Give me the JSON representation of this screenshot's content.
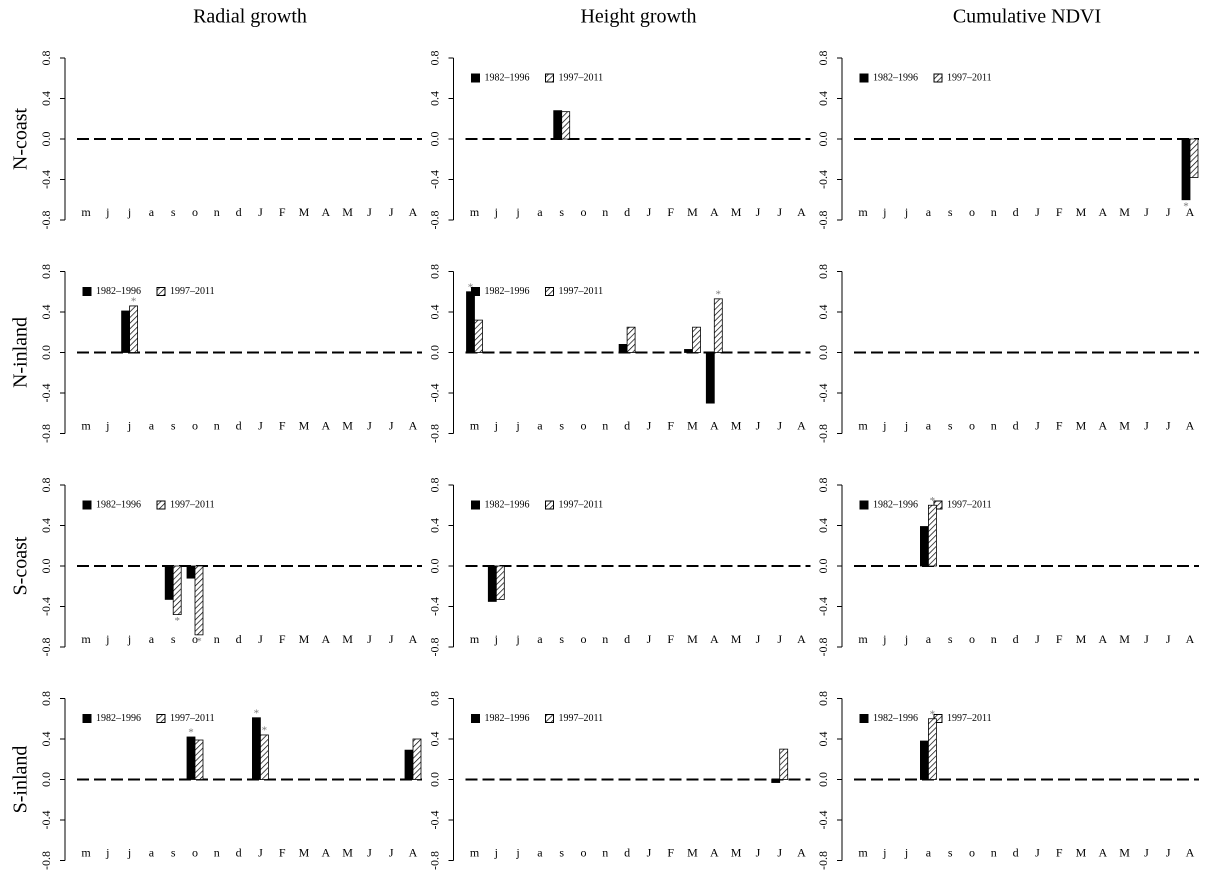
{
  "chart_data": [
    {
      "type": "bar",
      "title": "Radial growth",
      "ylabel": "N-coast",
      "categories": [
        "m",
        "j",
        "j",
        "a",
        "s",
        "o",
        "n",
        "d",
        "J",
        "F",
        "M",
        "A",
        "M",
        "J",
        "J",
        "A"
      ],
      "ylim": [
        -0.8,
        0.8
      ],
      "yticks": [
        -0.8,
        -0.4,
        {
          "value": 0,
          "label": "0.0"
        },
        0.4,
        0.8
      ]
    },
    {
      "type": "bar",
      "title": "Height growth",
      "categories": [
        "m",
        "j",
        "j",
        "a",
        "s",
        "o",
        "n",
        "d",
        "J",
        "F",
        "M",
        "A",
        "M",
        "J",
        "J",
        "A"
      ],
      "ylim": [
        -0.8,
        0.8
      ],
      "yticks": [
        -0.8,
        -0.4,
        {
          "value": 0,
          "label": "0.0"
        },
        0.4,
        0.8
      ],
      "legend": "top-left",
      "series": [
        {
          "name": "1982–1996",
          "color": "#000000",
          "hatch": false,
          "values": [
            0,
            0,
            0,
            0,
            0.28,
            0,
            0,
            0,
            0,
            0,
            0,
            0,
            0,
            0,
            0,
            0
          ]
        },
        {
          "name": "1997–2011",
          "color": "#000000",
          "hatch": true,
          "values": [
            0,
            0,
            0,
            0,
            0.27,
            0,
            0,
            0,
            0,
            0,
            0,
            0,
            0,
            0,
            0,
            0
          ]
        }
      ]
    },
    {
      "type": "bar",
      "title": "Cumulative NDVI",
      "categories": [
        "m",
        "j",
        "j",
        "a",
        "s",
        "o",
        "n",
        "d",
        "J",
        "F",
        "M",
        "A",
        "M",
        "J",
        "J",
        "A"
      ],
      "ylim": [
        -0.8,
        0.8
      ],
      "yticks": [
        -0.8,
        -0.4,
        {
          "value": 0,
          "label": "0.0"
        },
        0.4,
        0.8
      ],
      "legend": "top-left",
      "series": [
        {
          "name": "1982–1996",
          "color": "#000000",
          "hatch": false,
          "values": [
            0,
            0,
            0,
            0,
            0,
            0,
            0,
            0,
            0,
            0,
            0,
            0,
            0,
            0,
            0,
            -0.6
          ],
          "annotations": [
            null,
            null,
            null,
            null,
            null,
            null,
            null,
            null,
            null,
            null,
            null,
            null,
            null,
            null,
            null,
            "*"
          ]
        },
        {
          "name": "1997–2011",
          "color": "#000000",
          "hatch": true,
          "values": [
            0,
            0,
            0,
            0,
            0,
            0,
            0,
            0,
            0,
            0,
            0,
            0,
            0,
            0,
            0,
            -0.38
          ]
        }
      ]
    },
    {
      "type": "bar",
      "ylabel": "N-inland",
      "categories": [
        "m",
        "j",
        "j",
        "a",
        "s",
        "o",
        "n",
        "d",
        "J",
        "F",
        "M",
        "A",
        "M",
        "J",
        "J",
        "A"
      ],
      "ylim": [
        -0.8,
        0.8
      ],
      "yticks": [
        -0.8,
        -0.4,
        {
          "value": 0,
          "label": "0.0"
        },
        0.4,
        0.8
      ],
      "legend": "top-left",
      "series": [
        {
          "name": "1982–1996",
          "color": "#000000",
          "hatch": false,
          "values": [
            0,
            0,
            0.41,
            0,
            0,
            0,
            0,
            0,
            0,
            0,
            0,
            0,
            0,
            0,
            0,
            0
          ]
        },
        {
          "name": "1997–2011",
          "color": "#000000",
          "hatch": true,
          "values": [
            0,
            0,
            0.46,
            0,
            0,
            0,
            0,
            0,
            0,
            0,
            0,
            0,
            0,
            0,
            0,
            0
          ],
          "annotations": [
            null,
            null,
            "*",
            null,
            null,
            null,
            null,
            null,
            null,
            null,
            null,
            null,
            null,
            null,
            null,
            null
          ]
        }
      ]
    },
    {
      "type": "bar",
      "categories": [
        "m",
        "j",
        "j",
        "a",
        "s",
        "o",
        "n",
        "d",
        "J",
        "F",
        "M",
        "A",
        "M",
        "J",
        "J",
        "A"
      ],
      "ylim": [
        -0.8,
        0.8
      ],
      "yticks": [
        -0.8,
        -0.4,
        {
          "value": 0,
          "label": "0.0"
        },
        0.4,
        0.8
      ],
      "legend": "top-left",
      "series": [
        {
          "name": "1982–1996",
          "color": "#000000",
          "hatch": false,
          "values": [
            0.6,
            0,
            0,
            0,
            0,
            0,
            0,
            0.08,
            0,
            0,
            0.03,
            -0.5,
            0,
            0,
            0,
            0
          ],
          "annotations": [
            "*",
            null,
            null,
            null,
            null,
            null,
            null,
            null,
            null,
            null,
            null,
            null,
            null,
            null,
            null,
            null
          ]
        },
        {
          "name": "1997–2011",
          "color": "#000000",
          "hatch": true,
          "values": [
            0.32,
            0,
            0,
            0,
            0,
            0,
            0,
            0.25,
            0,
            0,
            0.25,
            0.53,
            0,
            0,
            0,
            0
          ],
          "annotations": [
            null,
            null,
            null,
            null,
            null,
            null,
            null,
            null,
            null,
            null,
            null,
            "*",
            null,
            null,
            null,
            null
          ]
        }
      ]
    },
    {
      "type": "bar",
      "categories": [
        "m",
        "j",
        "j",
        "a",
        "s",
        "o",
        "n",
        "d",
        "J",
        "F",
        "M",
        "A",
        "M",
        "J",
        "J",
        "A"
      ],
      "ylim": [
        -0.8,
        0.8
      ],
      "yticks": [
        -0.8,
        -0.4,
        {
          "value": 0,
          "label": "0.0"
        },
        0.4,
        0.8
      ]
    },
    {
      "type": "bar",
      "ylabel": "S-coast",
      "categories": [
        "m",
        "j",
        "j",
        "a",
        "s",
        "o",
        "n",
        "d",
        "J",
        "F",
        "M",
        "A",
        "M",
        "J",
        "J",
        "A"
      ],
      "ylim": [
        -0.8,
        0.8
      ],
      "yticks": [
        -0.8,
        -0.4,
        {
          "value": 0,
          "label": "0.0"
        },
        0.4,
        0.8
      ],
      "legend": "top-left",
      "series": [
        {
          "name": "1982–1996",
          "color": "#000000",
          "hatch": false,
          "values": [
            0,
            0,
            0,
            0,
            -0.33,
            -0.12,
            0,
            0,
            0,
            0,
            0,
            0,
            0,
            0,
            0,
            0
          ]
        },
        {
          "name": "1997–2011",
          "color": "#000000",
          "hatch": true,
          "values": [
            0,
            0,
            0,
            0,
            -0.48,
            -0.68,
            0,
            0,
            0,
            0,
            0,
            0,
            0,
            0,
            0,
            0
          ],
          "annotations": [
            null,
            null,
            null,
            null,
            "*",
            "*",
            null,
            null,
            null,
            null,
            null,
            null,
            null,
            null,
            null,
            null
          ]
        }
      ]
    },
    {
      "type": "bar",
      "categories": [
        "m",
        "j",
        "j",
        "a",
        "s",
        "o",
        "n",
        "d",
        "J",
        "F",
        "M",
        "A",
        "M",
        "J",
        "J",
        "A"
      ],
      "ylim": [
        -0.8,
        0.8
      ],
      "yticks": [
        -0.8,
        -0.4,
        {
          "value": 0,
          "label": "0.0"
        },
        0.4,
        0.8
      ],
      "legend": "top-left",
      "series": [
        {
          "name": "1982–1996",
          "color": "#000000",
          "hatch": false,
          "values": [
            0,
            -0.35,
            0,
            0,
            0,
            0,
            0,
            0,
            0,
            0,
            0,
            0,
            0,
            0,
            0,
            0
          ]
        },
        {
          "name": "1997–2011",
          "color": "#000000",
          "hatch": true,
          "values": [
            0,
            -0.33,
            0,
            0,
            0,
            0,
            0,
            0,
            0,
            0,
            0,
            0,
            0,
            0,
            0,
            0
          ]
        }
      ]
    },
    {
      "type": "bar",
      "categories": [
        "m",
        "j",
        "j",
        "a",
        "s",
        "o",
        "n",
        "d",
        "J",
        "F",
        "M",
        "A",
        "M",
        "J",
        "J",
        "A"
      ],
      "ylim": [
        -0.8,
        0.8
      ],
      "yticks": [
        -0.8,
        -0.4,
        {
          "value": 0,
          "label": "0.0"
        },
        0.4,
        0.8
      ],
      "legend": "top-left",
      "series": [
        {
          "name": "1982–1996",
          "color": "#000000",
          "hatch": false,
          "values": [
            0,
            0,
            0,
            0.39,
            0,
            0,
            0,
            0,
            0,
            0,
            0,
            0,
            0,
            0,
            0,
            0
          ]
        },
        {
          "name": "1997–2011",
          "color": "#000000",
          "hatch": true,
          "values": [
            0,
            0,
            0,
            0.6,
            0,
            0,
            0,
            0,
            0,
            0,
            0,
            0,
            0,
            0,
            0,
            0
          ],
          "annotations": [
            null,
            null,
            null,
            "*",
            null,
            null,
            null,
            null,
            null,
            null,
            null,
            null,
            null,
            null,
            null,
            null
          ]
        }
      ]
    },
    {
      "type": "bar",
      "ylabel": "S-inland",
      "categories": [
        "m",
        "j",
        "j",
        "a",
        "s",
        "o",
        "n",
        "d",
        "J",
        "F",
        "M",
        "A",
        "M",
        "J",
        "J",
        "A"
      ],
      "ylim": [
        -0.8,
        0.8
      ],
      "yticks": [
        -0.8,
        -0.4,
        {
          "value": 0,
          "label": "0.0"
        },
        0.4,
        0.8
      ],
      "legend": "top-left",
      "series": [
        {
          "name": "1982–1996",
          "color": "#000000",
          "hatch": false,
          "values": [
            0,
            0,
            0,
            0,
            0,
            0.42,
            0,
            0,
            0.61,
            0,
            0,
            0,
            0,
            0,
            0,
            0.29
          ],
          "annotations": [
            null,
            null,
            null,
            null,
            null,
            "*",
            null,
            null,
            "*",
            null,
            null,
            null,
            null,
            null,
            null,
            null
          ]
        },
        {
          "name": "1997–2011",
          "color": "#000000",
          "hatch": true,
          "values": [
            0,
            0,
            0,
            0,
            0,
            0.39,
            0,
            0,
            0.44,
            0,
            0,
            0,
            0,
            0,
            0,
            0.4
          ],
          "annotations": [
            null,
            null,
            null,
            null,
            null,
            null,
            null,
            null,
            "*",
            null,
            null,
            null,
            null,
            null,
            null,
            null
          ]
        }
      ]
    },
    {
      "type": "bar",
      "categories": [
        "m",
        "j",
        "j",
        "a",
        "s",
        "o",
        "n",
        "d",
        "J",
        "F",
        "M",
        "A",
        "M",
        "J",
        "J",
        "A"
      ],
      "ylim": [
        -0.8,
        0.8
      ],
      "yticks": [
        -0.8,
        -0.4,
        {
          "value": 0,
          "label": "0.0"
        },
        0.4,
        0.8
      ],
      "legend": "top-left",
      "series": [
        {
          "name": "1982–1996",
          "color": "#000000",
          "hatch": false,
          "values": [
            0,
            0,
            0,
            0,
            0,
            0,
            0,
            0,
            0,
            0,
            0,
            0,
            0,
            0,
            -0.03,
            0
          ]
        },
        {
          "name": "1997–2011",
          "color": "#000000",
          "hatch": true,
          "values": [
            0,
            0,
            0,
            0,
            0,
            0,
            0,
            0,
            0,
            0,
            0,
            0,
            0,
            0,
            0.3,
            0
          ]
        }
      ]
    },
    {
      "type": "bar",
      "categories": [
        "m",
        "j",
        "j",
        "a",
        "s",
        "o",
        "n",
        "d",
        "J",
        "F",
        "M",
        "A",
        "M",
        "J",
        "J",
        "A"
      ],
      "ylim": [
        -0.8,
        0.8
      ],
      "yticks": [
        -0.8,
        -0.4,
        {
          "value": 0,
          "label": "0.0"
        },
        0.4,
        0.8
      ],
      "legend": "top-left",
      "series": [
        {
          "name": "1982–1996",
          "color": "#000000",
          "hatch": false,
          "values": [
            0,
            0,
            0,
            0.38,
            0,
            0,
            0,
            0,
            0,
            0,
            0,
            0,
            0,
            0,
            0,
            0
          ]
        },
        {
          "name": "1997–2011",
          "color": "#000000",
          "hatch": true,
          "values": [
            0,
            0,
            0,
            0.6,
            0,
            0,
            0,
            0,
            0,
            0,
            0,
            0,
            0,
            0,
            0,
            0
          ],
          "annotations": [
            null,
            null,
            null,
            "*",
            null,
            null,
            null,
            null,
            null,
            null,
            null,
            null,
            null,
            null,
            null,
            null
          ]
        }
      ]
    }
  ]
}
